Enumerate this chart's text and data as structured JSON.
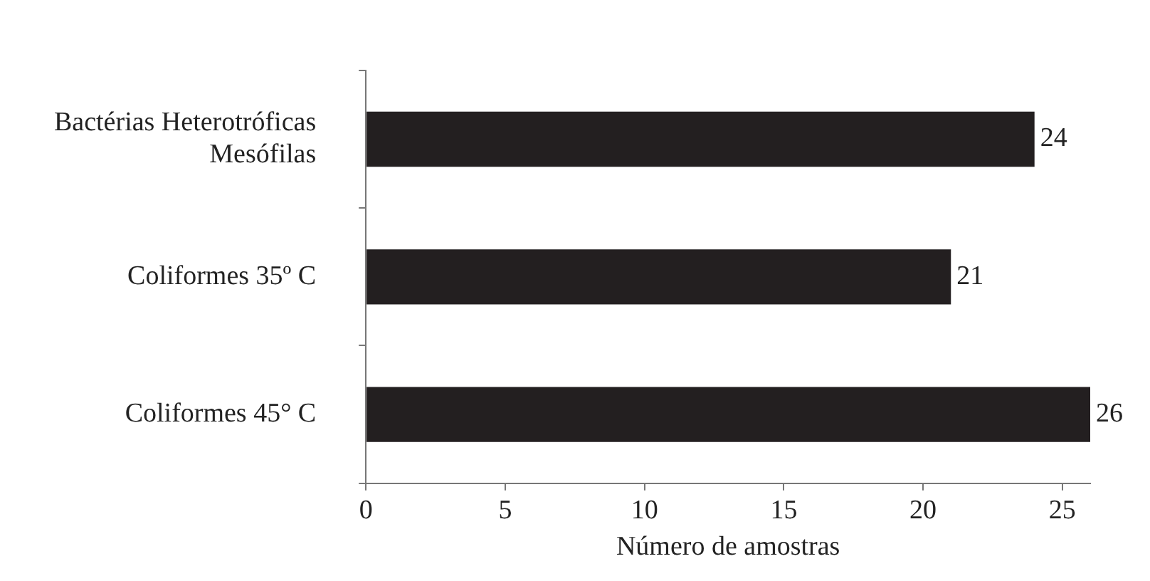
{
  "chart_data": {
    "type": "bar",
    "orientation": "horizontal",
    "categories": [
      "Bactérias Heterotróficas\nMesófilas",
      "Coliformes 35º C",
      "Coliformes 45° C"
    ],
    "values": [
      24,
      21,
      26
    ],
    "color": "#231f20",
    "xlabel": "Número de amostras",
    "xlim": [
      0,
      26
    ],
    "xticks": [
      0,
      5,
      10,
      15,
      20,
      25
    ],
    "data_labels": true,
    "grid": false,
    "legend": false
  }
}
